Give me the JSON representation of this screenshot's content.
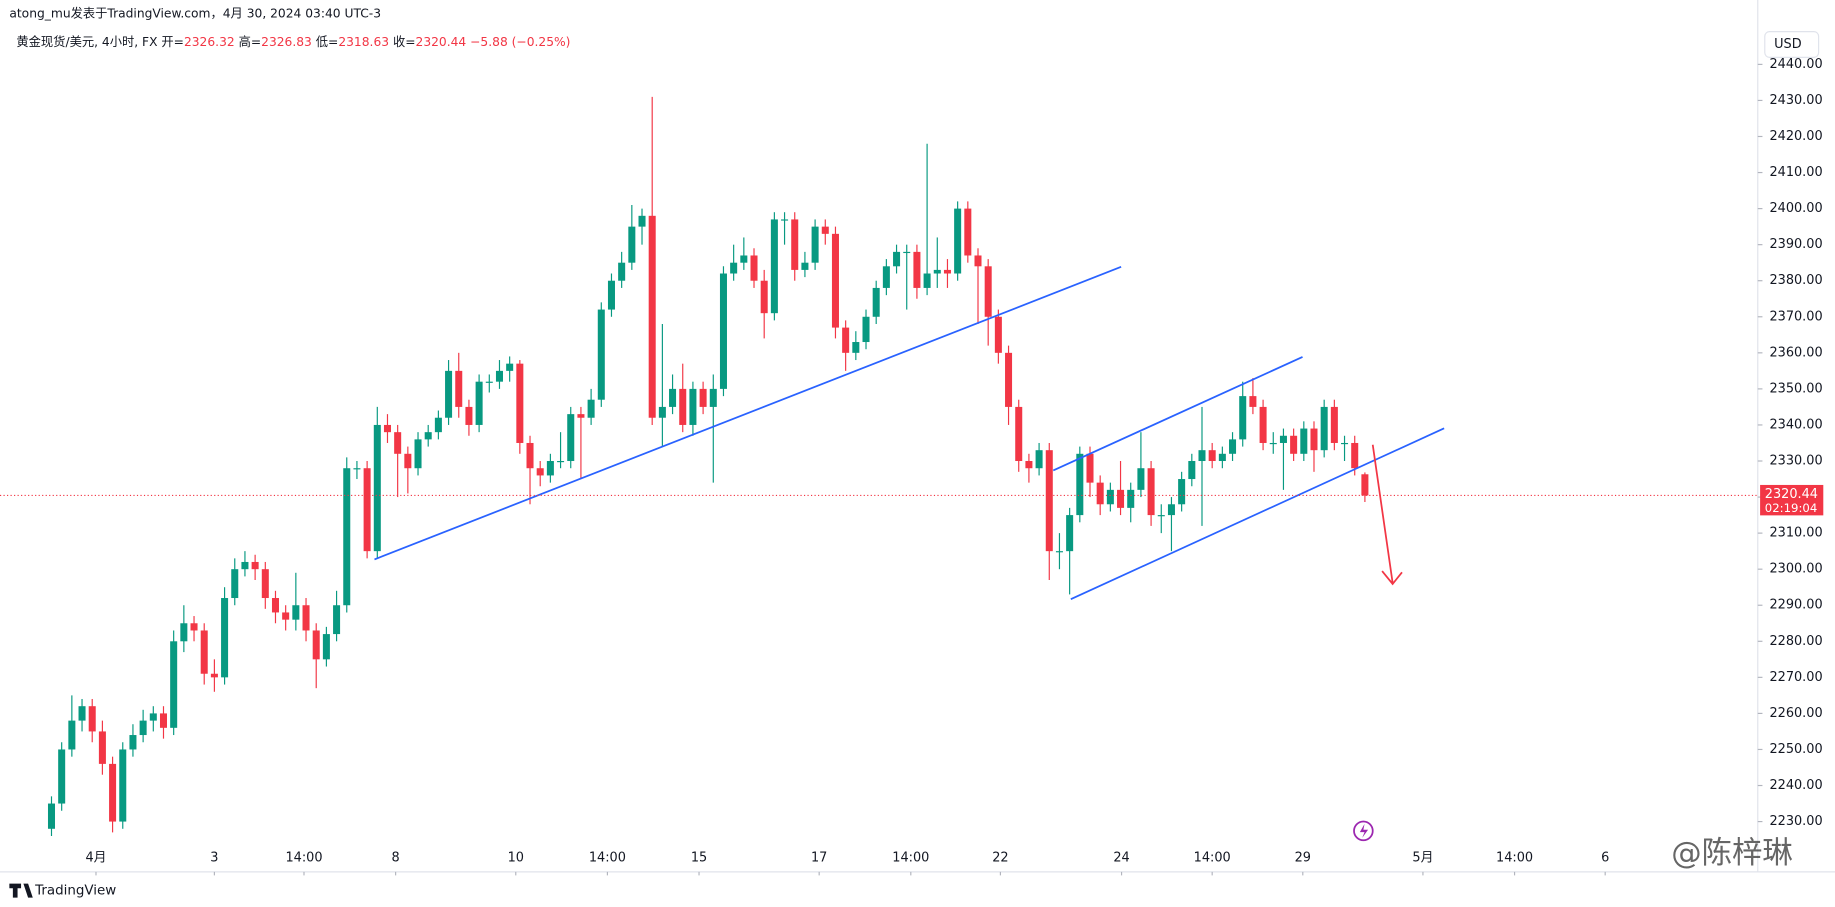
{
  "header": {
    "byline": "atong_mu发表于TradingView.com，4月 30, 2024 03:40 UTC-3",
    "symbol": "黄金现货/美元, 4小时, FX",
    "open_label": "开=",
    "high_label": "高=",
    "low_label": "低=",
    "close_label": "收=",
    "change": "−5.88 (−0.25%)"
  },
  "currency": "USD",
  "countdown": "02:19:04",
  "brand": "TradingView",
  "watermark": "@陈梓琳",
  "chart_data": {
    "type": "candlestick",
    "up_color": "#089981",
    "down_color": "#f23645",
    "open": [
      2228,
      2235,
      2250,
      2258,
      2262,
      2255,
      2246,
      2230,
      2250,
      2254,
      2258,
      2260,
      2256,
      2280,
      2285,
      2283,
      2271,
      2270,
      2292,
      2300,
      2302,
      2300,
      2292,
      2288,
      2286,
      2290,
      2283,
      2275,
      2282,
      2290,
      2328,
      2328,
      2305,
      2340,
      2338,
      2332,
      2328,
      2336,
      2338,
      2342,
      2355,
      2345,
      2340,
      2352,
      2352,
      2355,
      2357,
      2335,
      2328,
      2326,
      2330,
      2330,
      2343,
      2342,
      2347,
      2372,
      2380,
      2385,
      2395,
      2398,
      2342,
      2345,
      2350,
      2340,
      2350,
      2345,
      2350,
      2382,
      2385,
      2387,
      2380,
      2371,
      2397,
      2397,
      2383,
      2385,
      2395,
      2393,
      2367,
      2360,
      2363,
      2370,
      2378,
      2384,
      2388,
      2388,
      2378,
      2382,
      2383,
      2382,
      2400,
      2387,
      2384,
      2370,
      2360,
      2345,
      2330,
      2328,
      2333,
      2305,
      2305,
      2315,
      2332,
      2324,
      2318,
      2322,
      2317,
      2322,
      2328,
      2315,
      2315,
      2318,
      2325,
      2330,
      2333,
      2330,
      2332,
      2336,
      2348,
      2345,
      2335,
      2335,
      2337,
      2332,
      2339,
      2333,
      2345,
      2335,
      2335,
      2326.32
    ],
    "high": [
      2237,
      2252,
      2265,
      2264,
      2264,
      2258,
      2248,
      2252,
      2257,
      2261,
      2262,
      2262,
      2283,
      2290,
      2287,
      2285,
      2275,
      2295,
      2303,
      2305,
      2304,
      2302,
      2294,
      2290,
      2299,
      2292,
      2285,
      2284,
      2294,
      2331,
      2330,
      2330,
      2345,
      2343,
      2340,
      2334,
      2338,
      2340,
      2344,
      2358,
      2360,
      2347,
      2354,
      2354,
      2358,
      2359,
      2358,
      2337,
      2330,
      2332,
      2338,
      2345,
      2345,
      2350,
      2374,
      2382,
      2388,
      2401,
      2400,
      2431,
      2368,
      2354,
      2357,
      2352,
      2352,
      2354,
      2384,
      2390,
      2392,
      2389,
      2383,
      2399,
      2399,
      2399,
      2388,
      2397,
      2397,
      2395,
      2369,
      2366,
      2372,
      2380,
      2386,
      2390,
      2390,
      2390,
      2418,
      2392,
      2386,
      2402,
      2402,
      2389,
      2386,
      2372,
      2362,
      2347,
      2332,
      2335,
      2335,
      2310,
      2317,
      2334,
      2334,
      2326,
      2324,
      2330,
      2324,
      2338,
      2330,
      2318,
      2320,
      2327,
      2332,
      2345,
      2335,
      2334,
      2338,
      2352,
      2353,
      2347,
      2338,
      2339,
      2339,
      2341,
      2341,
      2347,
      2347,
      2337,
      2337,
      2326.83
    ],
    "low": [
      2226,
      2233,
      2248,
      2255,
      2252,
      2243,
      2227,
      2228,
      2248,
      2252,
      2255,
      2253,
      2254,
      2277,
      2280,
      2268,
      2266,
      2268,
      2290,
      2298,
      2297,
      2289,
      2285,
      2283,
      2283,
      2280,
      2267,
      2273,
      2280,
      2288,
      2325,
      2303,
      2303,
      2335,
      2320,
      2321,
      2326,
      2334,
      2336,
      2340,
      2342,
      2337,
      2338,
      2349,
      2350,
      2352,
      2332,
      2318,
      2323,
      2324,
      2328,
      2328,
      2325,
      2340,
      2345,
      2370,
      2378,
      2383,
      2390,
      2340,
      2334,
      2343,
      2338,
      2337,
      2343,
      2324,
      2348,
      2380,
      2383,
      2378,
      2364,
      2369,
      2390,
      2380,
      2381,
      2383,
      2390,
      2364,
      2355,
      2358,
      2361,
      2368,
      2376,
      2382,
      2372,
      2375,
      2376,
      2378,
      2378,
      2380,
      2385,
      2368,
      2362,
      2357,
      2340,
      2327,
      2324,
      2326,
      2297,
      2300,
      2293,
      2313,
      2320,
      2315,
      2316,
      2315,
      2313,
      2320,
      2312,
      2310,
      2305,
      2316,
      2323,
      2312,
      2328,
      2328,
      2330,
      2334,
      2343,
      2333,
      2332,
      2322,
      2330,
      2330,
      2327,
      2331,
      2333,
      2330,
      2326,
      2318.63
    ],
    "close": [
      2235,
      2250,
      2258,
      2262,
      2255,
      2246,
      2230,
      2250,
      2254,
      2258,
      2260,
      2256,
      2280,
      2285,
      2283,
      2271,
      2270,
      2292,
      2300,
      2302,
      2300,
      2292,
      2288,
      2286,
      2290,
      2283,
      2275,
      2282,
      2290,
      2328,
      2328,
      2305,
      2340,
      2338,
      2332,
      2328,
      2336,
      2338,
      2342,
      2355,
      2345,
      2340,
      2352,
      2352,
      2355,
      2357,
      2335,
      2328,
      2326,
      2330,
      2330,
      2343,
      2342,
      2347,
      2372,
      2380,
      2385,
      2395,
      2398,
      2342,
      2345,
      2350,
      2340,
      2350,
      2345,
      2350,
      2382,
      2385,
      2387,
      2380,
      2371,
      2397,
      2397,
      2383,
      2385,
      2395,
      2393,
      2367,
      2360,
      2363,
      2370,
      2378,
      2384,
      2388,
      2388,
      2378,
      2382,
      2383,
      2382,
      2400,
      2387,
      2384,
      2370,
      2360,
      2345,
      2330,
      2328,
      2333,
      2305,
      2305,
      2315,
      2332,
      2324,
      2318,
      2322,
      2317,
      2322,
      2328,
      2315,
      2315,
      2318,
      2325,
      2330,
      2333,
      2330,
      2332,
      2336,
      2348,
      2345,
      2335,
      2335,
      2337,
      2332,
      2339,
      2333,
      2345,
      2335,
      2335,
      2328,
      2320.44
    ],
    "ylim": [
      2216.05,
      2457.85
    ],
    "yticks": [
      {
        "value": 2230,
        "label": "2230.00"
      },
      {
        "value": 2240,
        "label": "2240.00"
      },
      {
        "value": 2250,
        "label": "2250.00"
      },
      {
        "value": 2260,
        "label": "2260.00"
      },
      {
        "value": 2270,
        "label": "2270.00"
      },
      {
        "value": 2280,
        "label": "2280.00"
      },
      {
        "value": 2290,
        "label": "2290.00"
      },
      {
        "value": 2300,
        "label": "2300.00"
      },
      {
        "value": 2310,
        "label": "2310.00"
      },
      {
        "value": 2320,
        "label": "2320.00"
      },
      {
        "value": 2330,
        "label": "2330.00"
      },
      {
        "value": 2340,
        "label": "2340.00"
      },
      {
        "value": 2350,
        "label": "2350.00"
      },
      {
        "value": 2360,
        "label": "2360.00"
      },
      {
        "value": 2370,
        "label": "2370.00"
      },
      {
        "value": 2380,
        "label": "2380.00"
      },
      {
        "value": 2390,
        "label": "2390.00"
      },
      {
        "value": 2400,
        "label": "2400.00"
      },
      {
        "value": 2410,
        "label": "2410.00"
      },
      {
        "value": 2420,
        "label": "2420.00"
      },
      {
        "value": 2430,
        "label": "2430.00"
      },
      {
        "value": 2440,
        "label": "2440.00"
      }
    ],
    "xlim": [
      -5.0575,
      167.5862
    ],
    "xticks": [
      {
        "value": 4.37,
        "label": "4月"
      },
      {
        "value": 16.0,
        "label": "3"
      },
      {
        "value": 24.8,
        "label": "14:00"
      },
      {
        "value": 33.8,
        "label": "8"
      },
      {
        "value": 45.6,
        "label": "10"
      },
      {
        "value": 54.6,
        "label": "14:00"
      },
      {
        "value": 63.6,
        "label": "15"
      },
      {
        "value": 75.4,
        "label": "17"
      },
      {
        "value": 84.4,
        "label": "14:00"
      },
      {
        "value": 93.2,
        "label": "22"
      },
      {
        "value": 105.1,
        "label": "24"
      },
      {
        "value": 114.0,
        "label": "14:00"
      },
      {
        "value": 122.9,
        "label": "29"
      },
      {
        "value": 134.7,
        "label": "5月"
      },
      {
        "value": 143.7,
        "label": "14:00"
      },
      {
        "value": 152.6,
        "label": "6"
      }
    ]
  }
}
